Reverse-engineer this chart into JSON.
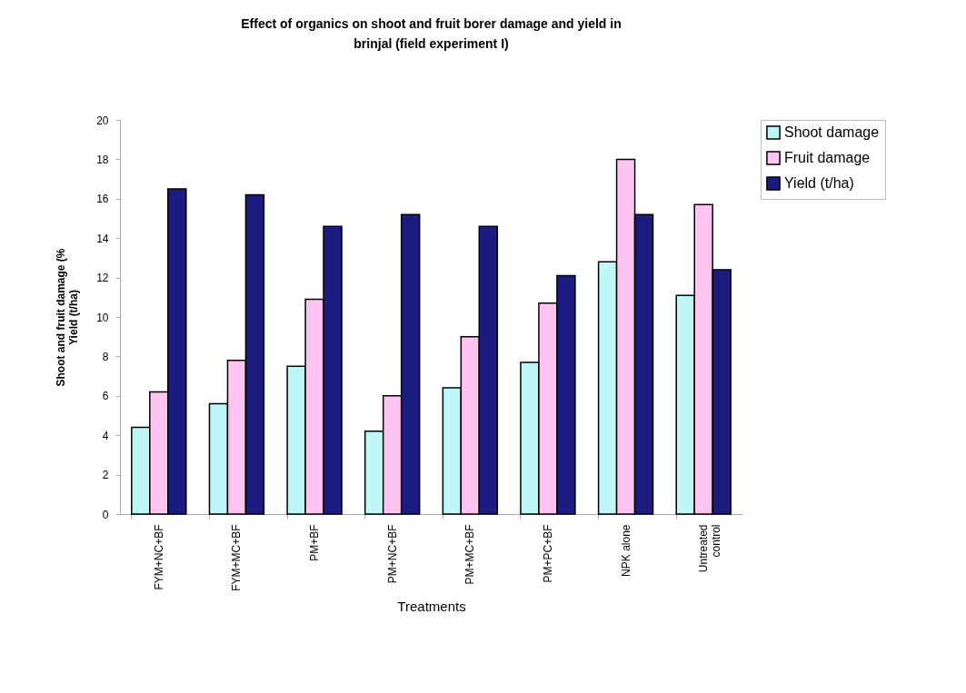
{
  "chart_data": {
    "type": "bar",
    "title": "Effect of organics on shoot and fruit borer damage and yield in\nbrinjal (field experiment I)",
    "xlabel": "Treatments",
    "ylabel": "Shoot and fruit damage (%\nYield (t/ha)",
    "categories": [
      "FYM+NC+BF",
      "FYM+MC+BF",
      "PM+BF",
      "PM+NC+BF",
      "PM+MC+BF",
      "PM+PC+BF",
      "NPK alone",
      "Untreated\ncontrol"
    ],
    "series": [
      {
        "name": "Shoot damage",
        "color": "#bff7f7",
        "values": [
          4.4,
          5.6,
          7.5,
          4.2,
          6.4,
          7.7,
          12.8,
          11.1
        ]
      },
      {
        "name": "Fruit damage",
        "color": "#ffc4f2",
        "values": [
          6.2,
          7.8,
          10.9,
          6.0,
          9.0,
          10.7,
          18.0,
          15.7
        ]
      },
      {
        "name": "Yield (t/ha)",
        "color": "#1c1c80",
        "values": [
          16.5,
          16.2,
          14.6,
          15.2,
          14.6,
          12.1,
          15.2,
          12.4
        ]
      }
    ],
    "ylim": [
      0,
      20
    ],
    "yticks": [
      0,
      2,
      4,
      6,
      8,
      10,
      12,
      14,
      16,
      18,
      20
    ],
    "grid": false,
    "legend": "right"
  }
}
